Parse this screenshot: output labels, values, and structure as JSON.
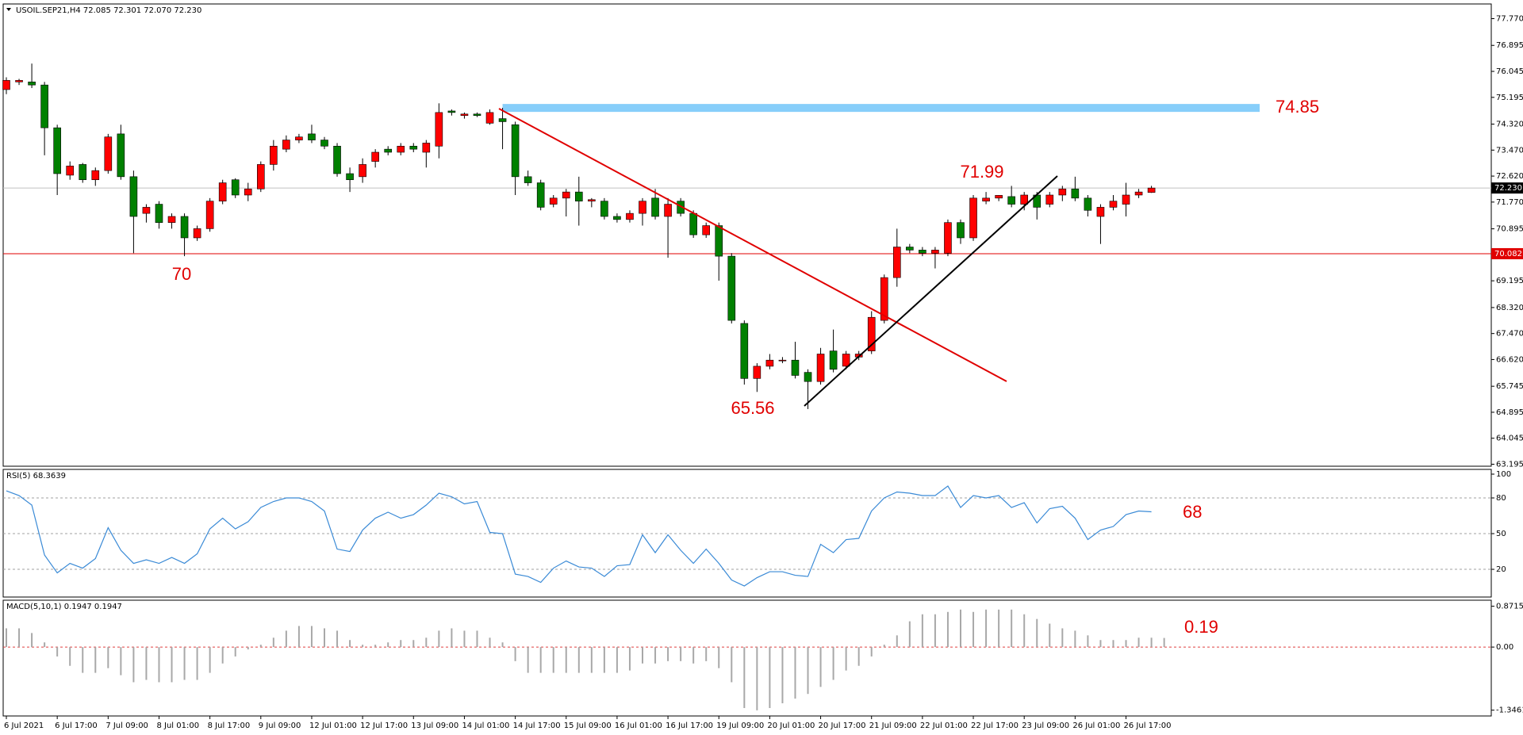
{
  "chart_data": [
    {
      "type": "candlestick",
      "title": "USOIL.SEP21,H4 72.085 72.301 72.070 72.230",
      "categories": [
        "6 Jul 2021",
        null,
        null,
        null,
        "6 Jul 17:00",
        null,
        null,
        null,
        "7 Jul 09:00",
        null,
        null,
        null,
        "8 Jul 01:00",
        null,
        null,
        null,
        "8 Jul 17:00",
        null,
        null,
        null,
        "9 Jul 09:00",
        null,
        null,
        null,
        "12 Jul 01:00",
        null,
        null,
        null,
        "12 Jul 17:00",
        null,
        null,
        null,
        "13 Jul 09:00",
        null,
        null,
        null,
        "14 Jul 01:00",
        null,
        null,
        null,
        "14 Jul 17:00",
        null,
        null,
        null,
        "15 Jul 09:00",
        null,
        null,
        null,
        "16 Jul 01:00",
        null,
        null,
        null,
        "16 Jul 17:00",
        null,
        null,
        null,
        "19 Jul 09:00",
        null,
        null,
        null,
        "20 Jul 01:00",
        null,
        null,
        null,
        "20 Jul 17:00",
        null,
        null,
        null,
        "21 Jul 09:00",
        null,
        null,
        null,
        "22 Jul 01:00",
        null,
        null,
        null,
        "22 Jul 17:00",
        null,
        null,
        null,
        "23 Jul 09:00",
        null,
        null,
        null,
        "26 Jul 01:00",
        null,
        null,
        null,
        "26 Jul 17:00",
        null,
        null
      ],
      "open": [
        75.45,
        75.7,
        75.7,
        75.6,
        74.2,
        72.65,
        73.0,
        72.5,
        72.8,
        74.0,
        72.6,
        71.4,
        71.7,
        71.1,
        71.3,
        70.6,
        70.9,
        71.8,
        72.5,
        72.0,
        72.2,
        73.0,
        73.5,
        73.8,
        74.0,
        73.8,
        73.6,
        72.7,
        72.6,
        73.1,
        73.5,
        73.4,
        73.6,
        73.4,
        73.6,
        74.75,
        74.6,
        74.65,
        74.35,
        74.5,
        74.3,
        72.6,
        72.4,
        71.7,
        71.9,
        72.1,
        71.8,
        71.8,
        71.3,
        71.2,
        71.4,
        71.9,
        71.3,
        71.8,
        71.4,
        70.7,
        71.0,
        70.0,
        67.8,
        66.0,
        66.4,
        66.6,
        66.6,
        66.2,
        65.9,
        66.9,
        66.4,
        66.7,
        66.9,
        67.9,
        69.3,
        70.3,
        70.2,
        70.1,
        70.1,
        71.1,
        70.6,
        71.8,
        71.9,
        71.95,
        71.7,
        72.0,
        71.7,
        72.0,
        72.2,
        71.9,
        71.3,
        71.6,
        71.7,
        72.0,
        72.085
      ],
      "high": [
        75.85,
        75.8,
        76.3,
        75.7,
        74.3,
        73.1,
        73.05,
        72.9,
        74.0,
        74.3,
        72.8,
        71.7,
        71.8,
        71.4,
        71.4,
        71.0,
        71.9,
        72.5,
        72.55,
        72.4,
        73.1,
        73.8,
        73.95,
        74.0,
        74.3,
        73.9,
        73.7,
        72.9,
        73.2,
        73.5,
        73.6,
        73.7,
        73.7,
        73.8,
        75.0,
        74.8,
        74.7,
        74.7,
        74.8,
        74.85,
        74.4,
        72.8,
        72.5,
        72.0,
        72.2,
        72.6,
        71.9,
        71.9,
        71.4,
        71.5,
        71.9,
        72.2,
        71.9,
        71.9,
        71.5,
        71.1,
        71.1,
        70.1,
        67.9,
        66.5,
        66.8,
        66.7,
        67.2,
        66.3,
        67.0,
        67.6,
        66.9,
        66.9,
        68.2,
        69.4,
        70.9,
        70.4,
        70.3,
        70.3,
        71.2,
        71.2,
        72.0,
        72.1,
        72.0,
        72.3,
        72.1,
        72.1,
        72.1,
        72.3,
        72.6,
        72.0,
        71.7,
        72.0,
        72.4,
        72.2,
        72.301
      ],
      "low": [
        75.3,
        75.6,
        75.5,
        73.3,
        72.0,
        72.5,
        72.4,
        72.3,
        72.7,
        72.5,
        70.1,
        71.1,
        70.9,
        70.9,
        70.0,
        70.5,
        70.8,
        71.7,
        71.9,
        71.8,
        72.1,
        72.8,
        73.4,
        73.7,
        73.7,
        73.5,
        72.6,
        72.1,
        72.4,
        72.9,
        73.3,
        73.3,
        73.4,
        72.9,
        73.2,
        74.6,
        74.5,
        74.55,
        74.3,
        73.5,
        72.0,
        72.3,
        71.5,
        71.6,
        71.3,
        71.0,
        71.6,
        71.2,
        71.1,
        71.1,
        71.0,
        71.2,
        69.95,
        71.3,
        70.6,
        70.6,
        69.2,
        67.8,
        65.8,
        65.56,
        66.3,
        66.5,
        66.0,
        65.0,
        65.8,
        66.2,
        66.3,
        66.6,
        66.8,
        67.8,
        69.0,
        70.1,
        70.0,
        69.6,
        70.0,
        70.4,
        70.5,
        71.7,
        71.8,
        71.6,
        71.5,
        71.2,
        71.6,
        71.8,
        71.8,
        71.3,
        70.4,
        71.5,
        71.3,
        71.9,
        72.07
      ],
      "close": [
        75.75,
        75.75,
        75.6,
        74.2,
        72.7,
        72.95,
        72.5,
        72.8,
        73.9,
        72.6,
        71.3,
        71.6,
        71.1,
        71.3,
        70.6,
        70.9,
        71.8,
        72.4,
        72.0,
        72.2,
        73.0,
        73.6,
        73.8,
        73.9,
        73.8,
        73.6,
        72.7,
        72.5,
        73.0,
        73.4,
        73.4,
        73.6,
        73.5,
        73.7,
        74.7,
        74.7,
        74.65,
        74.6,
        74.7,
        74.4,
        72.6,
        72.4,
        71.6,
        71.9,
        72.1,
        71.8,
        71.85,
        71.3,
        71.2,
        71.4,
        71.8,
        71.3,
        71.7,
        71.4,
        70.7,
        71.0,
        70.0,
        67.9,
        66.0,
        66.4,
        66.6,
        66.6,
        66.1,
        65.9,
        66.8,
        66.3,
        66.8,
        66.8,
        68.0,
        69.3,
        70.3,
        70.2,
        70.1,
        70.2,
        71.1,
        70.6,
        71.9,
        71.9,
        71.99,
        71.7,
        72.0,
        71.6,
        72.0,
        72.2,
        71.9,
        71.5,
        71.6,
        71.8,
        72.0,
        72.1,
        72.23
      ],
      "up_color": "#ff0000",
      "down_color": "#008000",
      "ylim": [
        63.13,
        78.25
      ],
      "yticks": [
        {
          "value": 77.77,
          "label": "77.770"
        },
        76.895,
        76.045,
        75.195,
        {
          "value": 74.32,
          "label": "74.320"
        },
        {
          "value": 73.47,
          "label": "73.470"
        },
        {
          "value": 72.62,
          "label": "72.620"
        },
        {
          "value": 71.77,
          "label": "71.770"
        },
        70.895,
        70.045,
        69.195,
        {
          "value": 68.32,
          "label": "68.320"
        },
        {
          "value": 67.47,
          "label": "67.470"
        },
        {
          "value": 66.62,
          "label": "66.620"
        },
        65.745,
        64.895,
        64.045,
        63.195
      ],
      "price_lines": [
        {
          "value": 72.23,
          "label": "72.230",
          "color": "#c0c0c0",
          "tag_color": "#000000"
        },
        {
          "value": 70.082,
          "label": "70.082",
          "color": "#e00000",
          "tag_color": "#e00000"
        }
      ],
      "level": {
        "value": 74.85,
        "label": "74.85",
        "color": "#87cefa"
      },
      "annotations": [
        "70",
        "65.56",
        "71.99"
      ]
    },
    {
      "type": "line",
      "title": "RSI(5) 68.3639",
      "color": "#3a8ad6",
      "values": [
        86,
        82,
        74,
        32,
        17,
        25,
        21,
        29,
        55,
        36,
        25,
        28,
        25,
        30,
        25,
        33,
        54,
        63,
        54,
        60,
        72,
        77,
        80,
        80,
        77,
        69,
        37,
        35,
        53,
        63,
        68,
        63,
        66,
        74,
        84,
        81,
        75,
        77,
        51,
        50,
        16,
        14,
        9,
        21,
        27,
        22,
        21,
        14,
        23,
        24,
        49,
        34,
        49,
        36,
        25,
        37,
        25,
        11,
        6,
        13,
        18,
        18,
        15,
        14,
        41,
        34,
        45,
        46,
        69,
        80,
        85,
        84,
        82,
        82,
        90,
        72,
        82,
        80,
        82,
        72,
        76,
        59,
        71,
        73,
        63,
        45,
        53,
        56,
        66,
        69,
        68.3639
      ],
      "ylim": [
        -3.3,
        104
      ],
      "yticks": [
        100,
        80,
        50,
        20
      ],
      "dashed_levels": [
        80,
        50,
        20
      ],
      "level_color": "#a0a0a0",
      "annotations": [
        "68"
      ]
    },
    {
      "type": "bar",
      "title": "MACD(5,10,1) 0.1947 0.1947",
      "color": "#a8a8a8",
      "values": [
        0.4,
        0.4,
        0.3,
        0.1,
        -0.2,
        -0.4,
        -0.55,
        -0.55,
        -0.45,
        -0.6,
        -0.75,
        -0.7,
        -0.75,
        -0.75,
        -0.7,
        -0.7,
        -0.55,
        -0.35,
        -0.2,
        -0.05,
        0.05,
        0.2,
        0.35,
        0.45,
        0.45,
        0.4,
        0.35,
        0.15,
        0.05,
        0.05,
        0.1,
        0.15,
        0.15,
        0.2,
        0.35,
        0.4,
        0.35,
        0.35,
        0.2,
        0.1,
        -0.3,
        -0.55,
        -0.55,
        -0.55,
        -0.55,
        -0.55,
        -0.55,
        -0.55,
        -0.55,
        -0.5,
        -0.35,
        -0.35,
        -0.3,
        -0.3,
        -0.35,
        -0.3,
        -0.45,
        -0.75,
        -1.3,
        -1.35,
        -1.3,
        -1.2,
        -1.1,
        -1.0,
        -0.85,
        -0.7,
        -0.5,
        -0.4,
        -0.2,
        0.05,
        0.25,
        0.55,
        0.7,
        0.7,
        0.75,
        0.8,
        0.75,
        0.8,
        0.8,
        0.8,
        0.7,
        0.6,
        0.5,
        0.4,
        0.35,
        0.25,
        0.15,
        0.15,
        0.15,
        0.2,
        0.2,
        0.1947
      ],
      "ylim": [
        -1.47,
        1.0
      ],
      "yticks": [
        0.8715,
        {
          "value": 0,
          "label": "0.00"
        },
        -1.3461
      ],
      "dashed_levels": [
        0
      ],
      "level_color": "#e04040",
      "annotations": [
        "0.19"
      ]
    }
  ]
}
